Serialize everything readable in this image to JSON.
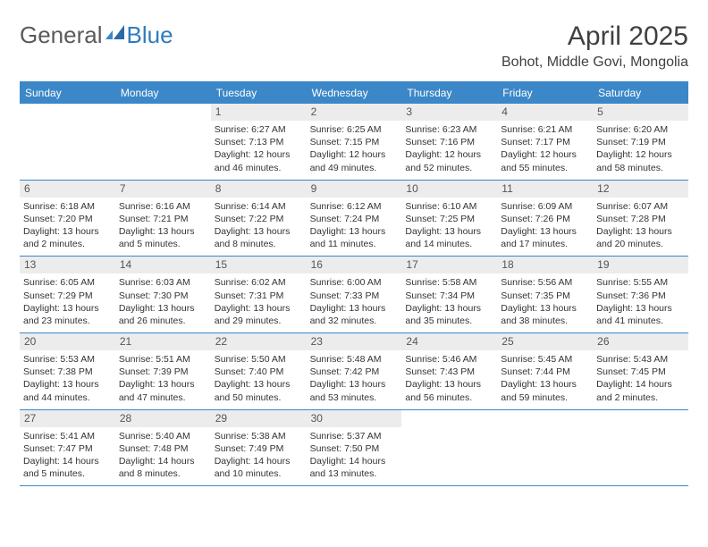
{
  "brand": {
    "word1": "General",
    "word2": "Blue"
  },
  "header": {
    "month_title": "April 2025",
    "location": "Bohot, Middle Govi, Mongolia"
  },
  "colors": {
    "primary": "#3b87c8",
    "daynum_bg": "#ececec",
    "text": "#333333",
    "title_text": "#404040"
  },
  "days_of_week": [
    "Sunday",
    "Monday",
    "Tuesday",
    "Wednesday",
    "Thursday",
    "Friday",
    "Saturday"
  ],
  "weeks": [
    [
      null,
      null,
      {
        "n": "1",
        "sunrise": "6:27 AM",
        "sunset": "7:13 PM",
        "daylight": "12 hours and 46 minutes."
      },
      {
        "n": "2",
        "sunrise": "6:25 AM",
        "sunset": "7:15 PM",
        "daylight": "12 hours and 49 minutes."
      },
      {
        "n": "3",
        "sunrise": "6:23 AM",
        "sunset": "7:16 PM",
        "daylight": "12 hours and 52 minutes."
      },
      {
        "n": "4",
        "sunrise": "6:21 AM",
        "sunset": "7:17 PM",
        "daylight": "12 hours and 55 minutes."
      },
      {
        "n": "5",
        "sunrise": "6:20 AM",
        "sunset": "7:19 PM",
        "daylight": "12 hours and 58 minutes."
      }
    ],
    [
      {
        "n": "6",
        "sunrise": "6:18 AM",
        "sunset": "7:20 PM",
        "daylight": "13 hours and 2 minutes."
      },
      {
        "n": "7",
        "sunrise": "6:16 AM",
        "sunset": "7:21 PM",
        "daylight": "13 hours and 5 minutes."
      },
      {
        "n": "8",
        "sunrise": "6:14 AM",
        "sunset": "7:22 PM",
        "daylight": "13 hours and 8 minutes."
      },
      {
        "n": "9",
        "sunrise": "6:12 AM",
        "sunset": "7:24 PM",
        "daylight": "13 hours and 11 minutes."
      },
      {
        "n": "10",
        "sunrise": "6:10 AM",
        "sunset": "7:25 PM",
        "daylight": "13 hours and 14 minutes."
      },
      {
        "n": "11",
        "sunrise": "6:09 AM",
        "sunset": "7:26 PM",
        "daylight": "13 hours and 17 minutes."
      },
      {
        "n": "12",
        "sunrise": "6:07 AM",
        "sunset": "7:28 PM",
        "daylight": "13 hours and 20 minutes."
      }
    ],
    [
      {
        "n": "13",
        "sunrise": "6:05 AM",
        "sunset": "7:29 PM",
        "daylight": "13 hours and 23 minutes."
      },
      {
        "n": "14",
        "sunrise": "6:03 AM",
        "sunset": "7:30 PM",
        "daylight": "13 hours and 26 minutes."
      },
      {
        "n": "15",
        "sunrise": "6:02 AM",
        "sunset": "7:31 PM",
        "daylight": "13 hours and 29 minutes."
      },
      {
        "n": "16",
        "sunrise": "6:00 AM",
        "sunset": "7:33 PM",
        "daylight": "13 hours and 32 minutes."
      },
      {
        "n": "17",
        "sunrise": "5:58 AM",
        "sunset": "7:34 PM",
        "daylight": "13 hours and 35 minutes."
      },
      {
        "n": "18",
        "sunrise": "5:56 AM",
        "sunset": "7:35 PM",
        "daylight": "13 hours and 38 minutes."
      },
      {
        "n": "19",
        "sunrise": "5:55 AM",
        "sunset": "7:36 PM",
        "daylight": "13 hours and 41 minutes."
      }
    ],
    [
      {
        "n": "20",
        "sunrise": "5:53 AM",
        "sunset": "7:38 PM",
        "daylight": "13 hours and 44 minutes."
      },
      {
        "n": "21",
        "sunrise": "5:51 AM",
        "sunset": "7:39 PM",
        "daylight": "13 hours and 47 minutes."
      },
      {
        "n": "22",
        "sunrise": "5:50 AM",
        "sunset": "7:40 PM",
        "daylight": "13 hours and 50 minutes."
      },
      {
        "n": "23",
        "sunrise": "5:48 AM",
        "sunset": "7:42 PM",
        "daylight": "13 hours and 53 minutes."
      },
      {
        "n": "24",
        "sunrise": "5:46 AM",
        "sunset": "7:43 PM",
        "daylight": "13 hours and 56 minutes."
      },
      {
        "n": "25",
        "sunrise": "5:45 AM",
        "sunset": "7:44 PM",
        "daylight": "13 hours and 59 minutes."
      },
      {
        "n": "26",
        "sunrise": "5:43 AM",
        "sunset": "7:45 PM",
        "daylight": "14 hours and 2 minutes."
      }
    ],
    [
      {
        "n": "27",
        "sunrise": "5:41 AM",
        "sunset": "7:47 PM",
        "daylight": "14 hours and 5 minutes."
      },
      {
        "n": "28",
        "sunrise": "5:40 AM",
        "sunset": "7:48 PM",
        "daylight": "14 hours and 8 minutes."
      },
      {
        "n": "29",
        "sunrise": "5:38 AM",
        "sunset": "7:49 PM",
        "daylight": "14 hours and 10 minutes."
      },
      {
        "n": "30",
        "sunrise": "5:37 AM",
        "sunset": "7:50 PM",
        "daylight": "14 hours and 13 minutes."
      },
      null,
      null,
      null
    ]
  ],
  "labels": {
    "sunrise": "Sunrise:",
    "sunset": "Sunset:",
    "daylight": "Daylight:"
  }
}
